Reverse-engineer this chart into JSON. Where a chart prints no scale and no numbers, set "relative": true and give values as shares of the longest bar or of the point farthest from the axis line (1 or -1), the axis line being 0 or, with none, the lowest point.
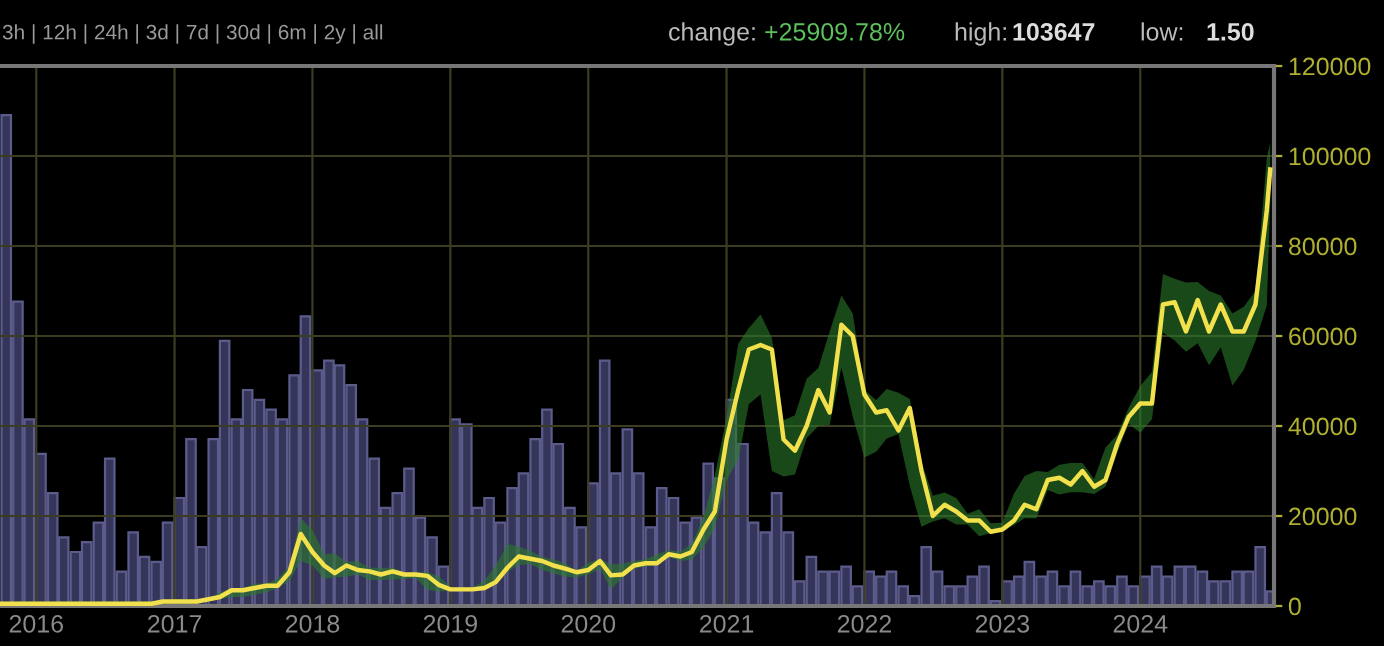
{
  "chart_data": [
    {
      "type": "line",
      "grid": true,
      "xlim": [
        "2015-09-27",
        "2024-12-20"
      ],
      "ylim": [
        0,
        120000
      ],
      "xticks": [
        {
          "value": "2016-01-01",
          "label": "2016"
        },
        {
          "value": "2017-01-01",
          "label": "2017"
        },
        {
          "value": "2018-01-01",
          "label": "2018"
        },
        {
          "value": "2019-01-01",
          "label": "2019"
        },
        {
          "value": "2020-01-01",
          "label": "2020"
        },
        {
          "value": "2021-01-01",
          "label": "2021"
        },
        {
          "value": "2022-01-01",
          "label": "2022"
        },
        {
          "value": "2023-01-01",
          "label": "2023"
        },
        {
          "value": "2024-01-01",
          "label": "2024"
        }
      ],
      "yticks": [
        0,
        20000,
        40000,
        60000,
        80000,
        100000,
        120000
      ],
      "annotations": [
        "3h | 12h | 24h | 3d | 7d | 30d | 6m | 2y | all",
        "change:",
        "+25909.78%",
        "high:",
        "103647",
        "low:",
        "1.50"
      ],
      "x": [
        "2015-10",
        "2015-11",
        "2015-12",
        "2016-01",
        "2016-02",
        "2016-03",
        "2016-04",
        "2016-05",
        "2016-06",
        "2016-07",
        "2016-08",
        "2016-09",
        "2016-10",
        "2016-11",
        "2016-12",
        "2017-01",
        "2017-02",
        "2017-03",
        "2017-04",
        "2017-05",
        "2017-06",
        "2017-07",
        "2017-08",
        "2017-09",
        "2017-10",
        "2017-11",
        "2017-12",
        "2018-01",
        "2018-02",
        "2018-03",
        "2018-04",
        "2018-05",
        "2018-06",
        "2018-07",
        "2018-08",
        "2018-09",
        "2018-10",
        "2018-11",
        "2018-12",
        "2019-01",
        "2019-02",
        "2019-03",
        "2019-04",
        "2019-05",
        "2019-06",
        "2019-07",
        "2019-08",
        "2019-09",
        "2019-10",
        "2019-11",
        "2019-12",
        "2020-01",
        "2020-02",
        "2020-03",
        "2020-04",
        "2020-05",
        "2020-06",
        "2020-07",
        "2020-08",
        "2020-09",
        "2020-10",
        "2020-11",
        "2020-12",
        "2021-01",
        "2021-02",
        "2021-03",
        "2021-04",
        "2021-05",
        "2021-06",
        "2021-07",
        "2021-08",
        "2021-09",
        "2021-10",
        "2021-11",
        "2021-12",
        "2022-01",
        "2022-02",
        "2022-03",
        "2022-04",
        "2022-05",
        "2022-06",
        "2022-07",
        "2022-08",
        "2022-09",
        "2022-10",
        "2022-11",
        "2022-12",
        "2023-01",
        "2023-02",
        "2023-03",
        "2023-04",
        "2023-05",
        "2023-06",
        "2023-07",
        "2023-08",
        "2023-09",
        "2023-10",
        "2023-11",
        "2023-12",
        "2024-01",
        "2024-02",
        "2024-03",
        "2024-04",
        "2024-05",
        "2024-06",
        "2024-07",
        "2024-08",
        "2024-09",
        "2024-10",
        "2024-11",
        "2024-12",
        "2024-12-10"
      ],
      "series": [
        {
          "color": "#f2e14c",
          "values": [
            500,
            500,
            500,
            500,
            500,
            500,
            500,
            500,
            500,
            500,
            500,
            500,
            500,
            500,
            1000,
            1000,
            1000,
            1000,
            1500,
            2000,
            3500,
            3500,
            4000,
            4500,
            4500,
            7500,
            16000,
            12000,
            9000,
            7300,
            9000,
            8000,
            7700,
            7000,
            7700,
            7000,
            7000,
            6700,
            4700,
            3700,
            3700,
            3700,
            4000,
            5300,
            8500,
            11000,
            10500,
            10000,
            9000,
            8300,
            7500,
            8000,
            10000,
            6800,
            7000,
            9000,
            9500,
            9500,
            11500,
            11000,
            12000,
            17000,
            21000,
            37000,
            48000,
            57000,
            58000,
            57000,
            37000,
            34500,
            40000,
            48000,
            43000,
            62500,
            60000,
            47000,
            43000,
            43500,
            39000,
            44000,
            30000,
            20000,
            22500,
            21000,
            19000,
            19000,
            16500,
            17000,
            19000,
            22500,
            21500,
            28000,
            28500,
            27000,
            30000,
            26500,
            28000,
            36000,
            42000,
            45000,
            45000,
            67000,
            67500,
            61000,
            68000,
            61000,
            67000,
            61000,
            61000,
            67000,
            88000,
            97000
          ],
          "upper": [
            1000,
            1000,
            1000,
            1000,
            1000,
            1000,
            1000,
            1000,
            1000,
            1000,
            1000,
            1000,
            1000,
            1000,
            1000,
            1500,
            1500,
            1500,
            1500,
            3000,
            4000,
            4000,
            5000,
            5000,
            6000,
            9000,
            19500,
            17000,
            11500,
            11700,
            9800,
            10000,
            8500,
            8500,
            8500,
            7400,
            7500,
            7500,
            6600,
            4200,
            4200,
            4100,
            5600,
            9000,
            13800,
            13200,
            12300,
            10900,
            10400,
            9500,
            7800,
            9600,
            10500,
            9200,
            9400,
            10000,
            10400,
            11500,
            12400,
            12100,
            13800,
            19800,
            29000,
            41900,
            58300,
            61800,
            64800,
            59600,
            41300,
            42400,
            50500,
            52900,
            61000,
            69000,
            65000,
            48000,
            45800,
            48200,
            47400,
            46000,
            32000,
            24500,
            25200,
            24000,
            20500,
            21500,
            18400,
            18500,
            25000,
            28900,
            30000,
            29800,
            31400,
            31800,
            31800,
            28200,
            35200,
            38000,
            44000,
            48900,
            52000,
            73800,
            72700,
            71900,
            72000,
            70000,
            69000,
            65000,
            66500,
            70000,
            99500,
            103000
          ],
          "lower": [
            0,
            0,
            0,
            0,
            0,
            0,
            0,
            0,
            0,
            0,
            0,
            0,
            0,
            0,
            0,
            500,
            500,
            500,
            1000,
            1500,
            2000,
            2000,
            2500,
            3000,
            4000,
            5500,
            10000,
            9000,
            6000,
            6400,
            6500,
            7000,
            5800,
            5800,
            5900,
            6000,
            6200,
            3600,
            3200,
            3400,
            3300,
            3500,
            4000,
            4800,
            7500,
            9100,
            9300,
            8000,
            7300,
            6500,
            6400,
            7000,
            8300,
            3800,
            6300,
            8200,
            8900,
            9000,
            10900,
            10000,
            10300,
            13000,
            17300,
            28000,
            32400,
            44900,
            47000,
            30000,
            28800,
            29200,
            37300,
            40000,
            40200,
            53000,
            42100,
            33000,
            34300,
            37200,
            38200,
            26700,
            17600,
            18800,
            19500,
            18100,
            18100,
            15500,
            16200,
            16500,
            18000,
            19500,
            19500,
            25800,
            24800,
            25300,
            25300,
            24900,
            26500,
            34000,
            40500,
            38500,
            41500,
            60800,
            59000,
            56500,
            58400,
            53500,
            57500,
            49000,
            52500,
            58900,
            66800,
            90000
          ]
        }
      ]
    },
    {
      "type": "bar",
      "relative": true,
      "tick_labels": false,
      "xlim": [
        "2015-09-27",
        "2024-12-20"
      ],
      "x": [
        "2015-10",
        "2015-11",
        "2015-12",
        "2016-01",
        "2016-02",
        "2016-03",
        "2016-04",
        "2016-05",
        "2016-06",
        "2016-07",
        "2016-08",
        "2016-09",
        "2016-10",
        "2016-11",
        "2016-12",
        "2017-01",
        "2017-02",
        "2017-03",
        "2017-04",
        "2017-05",
        "2017-06",
        "2017-07",
        "2017-08",
        "2017-09",
        "2017-10",
        "2017-11",
        "2017-12",
        "2018-01",
        "2018-02",
        "2018-03",
        "2018-04",
        "2018-05",
        "2018-06",
        "2018-07",
        "2018-08",
        "2018-09",
        "2018-10",
        "2018-11",
        "2018-12",
        "2019-01",
        "2019-02",
        "2019-03",
        "2019-04",
        "2019-05",
        "2019-06",
        "2019-07",
        "2019-08",
        "2019-09",
        "2019-10",
        "2019-11",
        "2019-12",
        "2020-01",
        "2020-02",
        "2020-03",
        "2020-04",
        "2020-05",
        "2020-06",
        "2020-07",
        "2020-08",
        "2020-09",
        "2020-10",
        "2020-11",
        "2020-12",
        "2021-01",
        "2021-02",
        "2021-03",
        "2021-04",
        "2021-05",
        "2021-06",
        "2021-07",
        "2021-08",
        "2021-09",
        "2021-10",
        "2021-11",
        "2021-12",
        "2022-01",
        "2022-02",
        "2022-03",
        "2022-04",
        "2022-05",
        "2022-06",
        "2022-07",
        "2022-08",
        "2022-09",
        "2022-10",
        "2022-11",
        "2022-12",
        "2023-01",
        "2023-02",
        "2023-03",
        "2023-04",
        "2023-05",
        "2023-06",
        "2023-07",
        "2023-08",
        "2023-09",
        "2023-10",
        "2023-11",
        "2023-12",
        "2024-01",
        "2024-02",
        "2024-03",
        "2024-04",
        "2024-05",
        "2024-06",
        "2024-07",
        "2024-08",
        "2024-09",
        "2024-10",
        "2024-11",
        "2024-12"
      ],
      "series": [
        {
          "color": "#35355a",
          "values": [
            1,
            0.62,
            0.38,
            0.31,
            0.23,
            0.14,
            0.11,
            0.13,
            0.17,
            0.3,
            0.07,
            0.15,
            0.1,
            0.09,
            0.17,
            0.22,
            0.34,
            0.12,
            0.34,
            0.54,
            0.38,
            0.44,
            0.42,
            0.4,
            0.38,
            0.47,
            0.59,
            0.48,
            0.5,
            0.49,
            0.45,
            0.38,
            0.3,
            0.2,
            0.23,
            0.28,
            0.18,
            0.14,
            0.08,
            0.38,
            0.37,
            0.2,
            0.22,
            0.17,
            0.24,
            0.27,
            0.34,
            0.4,
            0.33,
            0.2,
            0.16,
            0.25,
            0.5,
            0.27,
            0.36,
            0.27,
            0.16,
            0.24,
            0.22,
            0.17,
            0.18,
            0.29,
            0.26,
            0.42,
            0.33,
            0.17,
            0.15,
            0.23,
            0.15,
            0.05,
            0.1,
            0.07,
            0.07,
            0.08,
            0.04,
            0.07,
            0.06,
            0.07,
            0.04,
            0.02,
            0.12,
            0.07,
            0.04,
            0.04,
            0.06,
            0.08,
            0.01,
            0.05,
            0.06,
            0.09,
            0.06,
            0.07,
            0.04,
            0.07,
            0.04,
            0.05,
            0.04,
            0.06,
            0.04,
            0.06,
            0.08,
            0.06,
            0.08,
            0.08,
            0.07,
            0.05,
            0.05,
            0.07,
            0.07,
            0.12,
            0.03
          ]
        }
      ]
    }
  ]
}
